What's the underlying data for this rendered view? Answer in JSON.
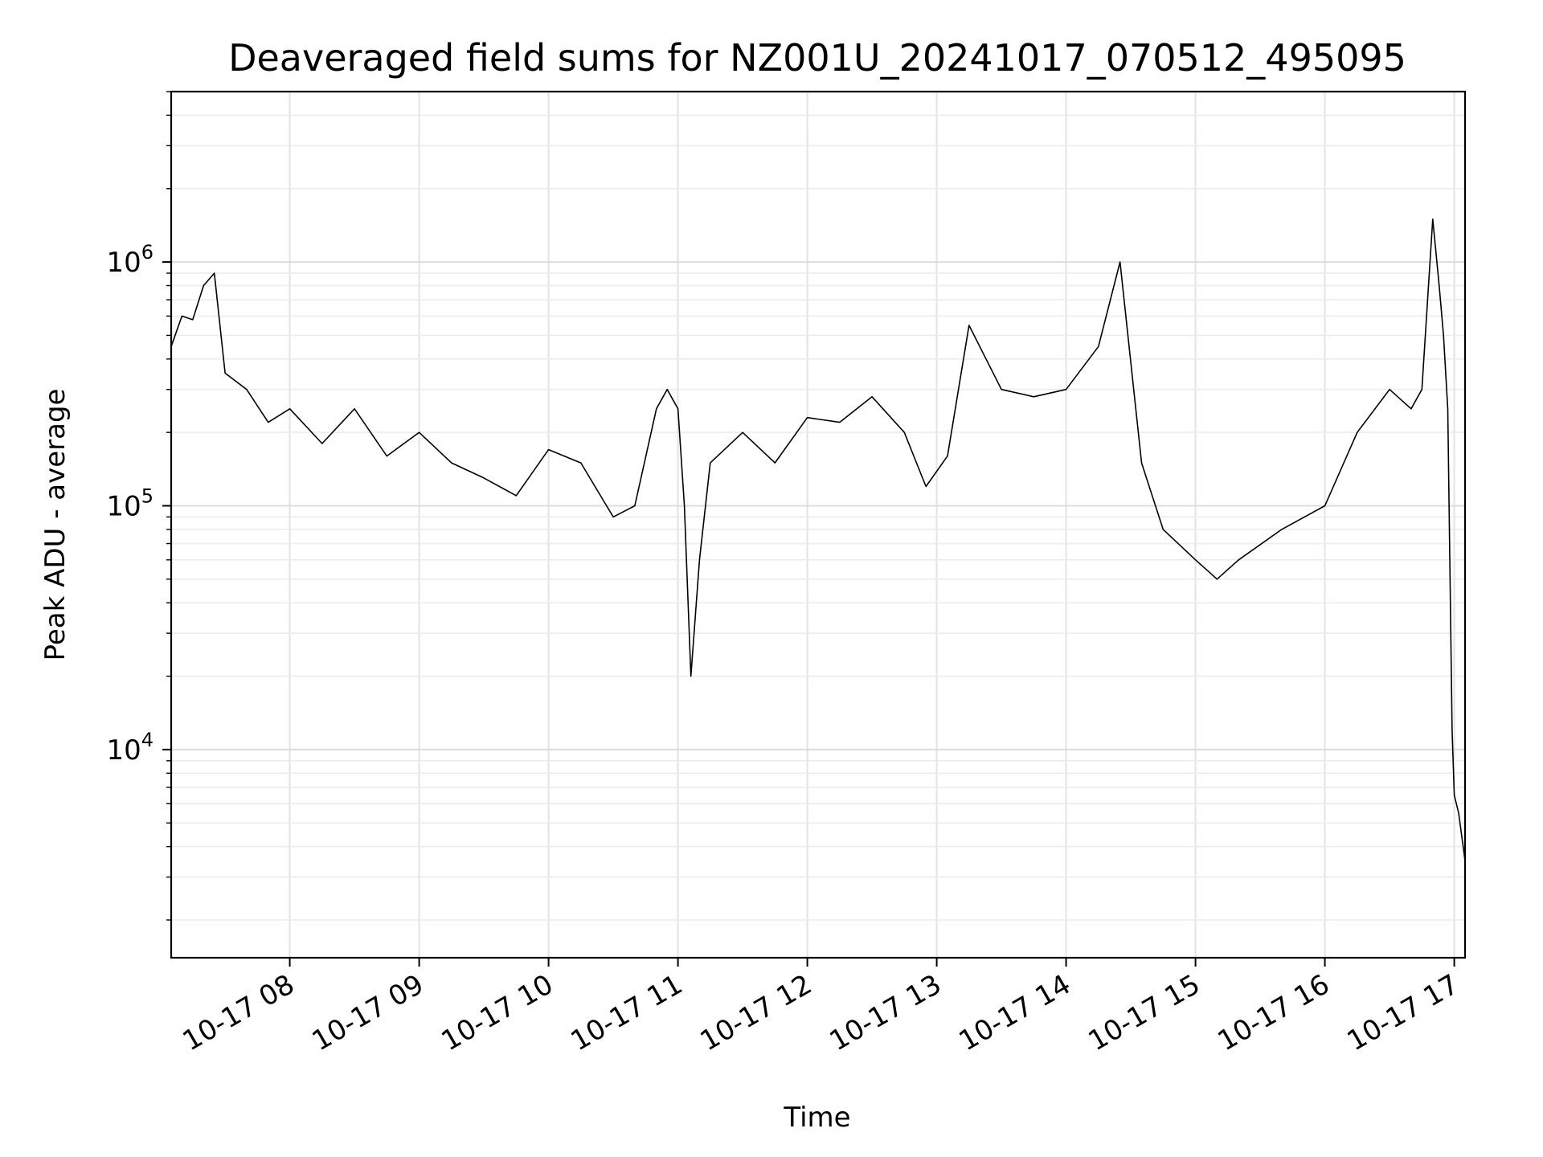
{
  "chart_data": {
    "type": "line",
    "title": "Deaveraged field sums for NZ001U_20241017_070512_495095",
    "xlabel": "Time",
    "ylabel": "Peak ADU - average",
    "y_scale": "log",
    "ylim": [
      1400,
      5000000
    ],
    "xlim": [
      "2024-10-17 07:05",
      "2024-10-17 17:05"
    ],
    "x_ticks": [
      {
        "t": "2024-10-17 08:00",
        "label": "10-17 08"
      },
      {
        "t": "2024-10-17 09:00",
        "label": "10-17 09"
      },
      {
        "t": "2024-10-17 10:00",
        "label": "10-17 10"
      },
      {
        "t": "2024-10-17 11:00",
        "label": "10-17 11"
      },
      {
        "t": "2024-10-17 12:00",
        "label": "10-17 12"
      },
      {
        "t": "2024-10-17 13:00",
        "label": "10-17 13"
      },
      {
        "t": "2024-10-17 14:00",
        "label": "10-17 14"
      },
      {
        "t": "2024-10-17 15:00",
        "label": "10-17 15"
      },
      {
        "t": "2024-10-17 16:00",
        "label": "10-17 16"
      },
      {
        "t": "2024-10-17 17:00",
        "label": "10-17 17"
      }
    ],
    "y_ticks": [
      {
        "value": 10000,
        "base": "10",
        "exp": "4"
      },
      {
        "value": 100000,
        "base": "10",
        "exp": "5"
      },
      {
        "value": 1000000,
        "base": "10",
        "exp": "6"
      }
    ],
    "grid": true,
    "line_color": "#000000",
    "series": [
      {
        "x": [
          "2024-10-17 07:05",
          "2024-10-17 07:10",
          "2024-10-17 07:15",
          "2024-10-17 07:20",
          "2024-10-17 07:25",
          "2024-10-17 07:30",
          "2024-10-17 07:40",
          "2024-10-17 07:50",
          "2024-10-17 08:00",
          "2024-10-17 08:15",
          "2024-10-17 08:30",
          "2024-10-17 08:45",
          "2024-10-17 09:00",
          "2024-10-17 09:15",
          "2024-10-17 09:30",
          "2024-10-17 09:45",
          "2024-10-17 10:00",
          "2024-10-17 10:15",
          "2024-10-17 10:30",
          "2024-10-17 10:40",
          "2024-10-17 10:50",
          "2024-10-17 10:55",
          "2024-10-17 11:00",
          "2024-10-17 11:03",
          "2024-10-17 11:06",
          "2024-10-17 11:10",
          "2024-10-17 11:15",
          "2024-10-17 11:30",
          "2024-10-17 11:45",
          "2024-10-17 12:00",
          "2024-10-17 12:15",
          "2024-10-17 12:30",
          "2024-10-17 12:45",
          "2024-10-17 12:55",
          "2024-10-17 13:05",
          "2024-10-17 13:15",
          "2024-10-17 13:30",
          "2024-10-17 13:45",
          "2024-10-17 14:00",
          "2024-10-17 14:15",
          "2024-10-17 14:25",
          "2024-10-17 14:35",
          "2024-10-17 14:45",
          "2024-10-17 15:00",
          "2024-10-17 15:10",
          "2024-10-17 15:20",
          "2024-10-17 15:40",
          "2024-10-17 16:00",
          "2024-10-17 16:15",
          "2024-10-17 16:30",
          "2024-10-17 16:40",
          "2024-10-17 16:45",
          "2024-10-17 16:50",
          "2024-10-17 16:53",
          "2024-10-17 16:55",
          "2024-10-17 16:57",
          "2024-10-17 16:59",
          "2024-10-17 17:00",
          "2024-10-17 17:02",
          "2024-10-17 17:05"
        ],
        "y": [
          450000,
          600000,
          580000,
          800000,
          900000,
          350000,
          300000,
          220000,
          250000,
          180000,
          250000,
          160000,
          200000,
          150000,
          130000,
          110000,
          170000,
          150000,
          90000,
          100000,
          250000,
          300000,
          250000,
          100000,
          20000,
          60000,
          150000,
          200000,
          150000,
          230000,
          220000,
          280000,
          200000,
          120000,
          160000,
          550000,
          300000,
          280000,
          300000,
          450000,
          1000000,
          150000,
          80000,
          60000,
          50000,
          60000,
          80000,
          100000,
          200000,
          300000,
          250000,
          300000,
          1500000,
          800000,
          500000,
          250000,
          12000,
          6500,
          5500,
          3500
        ]
      }
    ]
  }
}
